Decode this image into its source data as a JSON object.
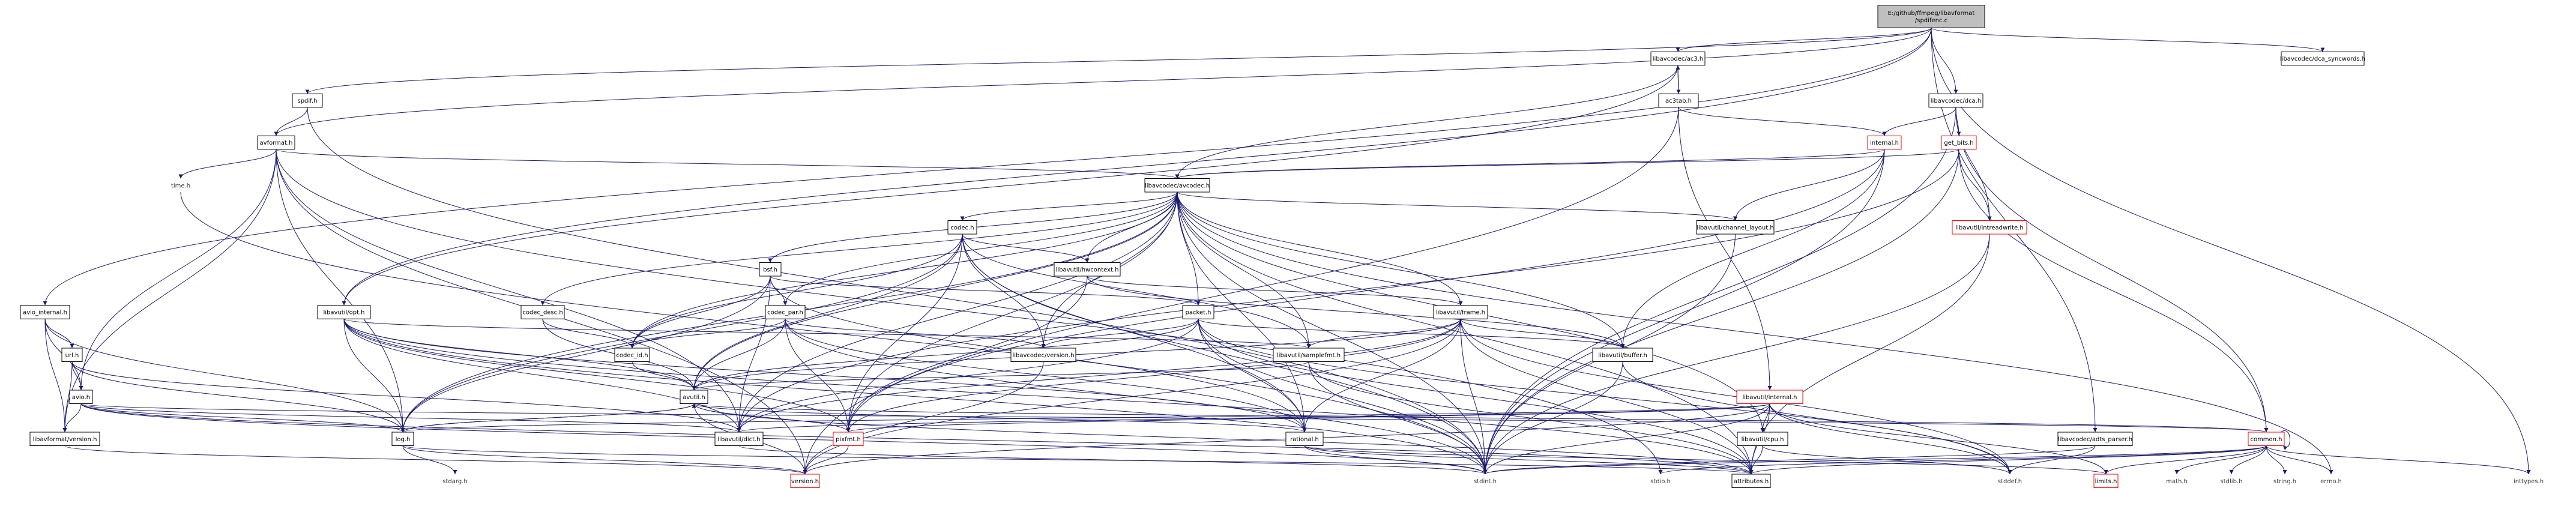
{
  "graph": {
    "title": "E:/github/ffmpeg/libavformat/spdifenc.c",
    "colors": {
      "edge": "#191970",
      "node_fill": "#ffffff",
      "root_fill": "#bfbfbf",
      "border_normal": "#000000",
      "border_truncated": "#ff0000",
      "text_plain": "#3f3f3f"
    },
    "nodes": [
      {
        "id": "root",
        "label": "E:/github/ffmpeg/libavformat\n/spdifenc.c",
        "style": "root"
      },
      {
        "id": "ac3h",
        "label": "libavcodec/ac3.h",
        "style": "normal"
      },
      {
        "id": "ac3tab",
        "label": "ac3tab.h",
        "style": "normal"
      },
      {
        "id": "dcah",
        "label": "libavcodec/dca.h",
        "style": "normal"
      },
      {
        "id": "dcasync",
        "label": "libavcodec/dca_syncwords.h",
        "style": "normal"
      },
      {
        "id": "spdifh",
        "label": "spdif.h",
        "style": "normal"
      },
      {
        "id": "avformat",
        "label": "avformat.h",
        "style": "normal"
      },
      {
        "id": "timeh",
        "label": "time.h",
        "style": "plain"
      },
      {
        "id": "internal",
        "label": "internal.h",
        "style": "truncated"
      },
      {
        "id": "getbits",
        "label": "get_bits.h",
        "style": "truncated"
      },
      {
        "id": "avcodec",
        "label": "libavcodec/avcodec.h",
        "style": "normal"
      },
      {
        "id": "codech",
        "label": "codec.h",
        "style": "normal"
      },
      {
        "id": "chlayout",
        "label": "libavutil/channel_layout.h",
        "style": "normal"
      },
      {
        "id": "intrw",
        "label": "libavutil/intreadwrite.h",
        "style": "truncated"
      },
      {
        "id": "avinternal",
        "label": "avio_internal.h",
        "style": "normal"
      },
      {
        "id": "optst",
        "label": "libavutil/opt.h",
        "style": "normal"
      },
      {
        "id": "codecdesc",
        "label": "codec_desc.h",
        "style": "normal"
      },
      {
        "id": "bsf",
        "label": "bsf.h",
        "style": "normal"
      },
      {
        "id": "hwctx",
        "label": "libavutil/hwcontext.h",
        "style": "normal"
      },
      {
        "id": "codecpar",
        "label": "codec_par.h",
        "style": "normal"
      },
      {
        "id": "packet",
        "label": "packet.h",
        "style": "normal"
      },
      {
        "id": "frame",
        "label": "libavutil/frame.h",
        "style": "normal"
      },
      {
        "id": "urlh",
        "label": "url.h",
        "style": "normal"
      },
      {
        "id": "codecid",
        "label": "codec_id.h",
        "style": "normal"
      },
      {
        "id": "lavcver",
        "label": "libavcodec/version.h",
        "style": "normal"
      },
      {
        "id": "samplefmt",
        "label": "libavutil/samplefmt.h",
        "style": "normal"
      },
      {
        "id": "buffer",
        "label": "libavutil/buffer.h",
        "style": "normal"
      },
      {
        "id": "avioh",
        "label": "avio.h",
        "style": "normal"
      },
      {
        "id": "avutilh",
        "label": "avutil.h",
        "style": "normal"
      },
      {
        "id": "lavuinternal",
        "label": "libavutil/internal.h",
        "style": "truncated"
      },
      {
        "id": "lavfver",
        "label": "libavformat/version.h",
        "style": "normal"
      },
      {
        "id": "logh",
        "label": "log.h",
        "style": "normal"
      },
      {
        "id": "dict",
        "label": "libavutil/dict.h",
        "style": "normal"
      },
      {
        "id": "pixfmt",
        "label": "pixfmt.h",
        "style": "truncated"
      },
      {
        "id": "rational",
        "label": "rational.h",
        "style": "normal"
      },
      {
        "id": "cpuh",
        "label": "libavutil/cpu.h",
        "style": "normal"
      },
      {
        "id": "adtsparser",
        "label": "libavcodec/adts_parser.h",
        "style": "normal"
      },
      {
        "id": "commonh",
        "label": "common.h",
        "style": "truncated"
      },
      {
        "id": "stdargh",
        "label": "stdarg.h",
        "style": "plain"
      },
      {
        "id": "versionh",
        "label": "version.h",
        "style": "truncated"
      },
      {
        "id": "stdinth",
        "label": "stdint.h",
        "style": "plain"
      },
      {
        "id": "stdioh",
        "label": "stdio.h",
        "style": "plain"
      },
      {
        "id": "attributes",
        "label": "attributes.h",
        "style": "normal"
      },
      {
        "id": "stddefh",
        "label": "stddef.h",
        "style": "plain"
      },
      {
        "id": "limitsh",
        "label": "limits.h",
        "style": "truncated"
      },
      {
        "id": "mathh",
        "label": "math.h",
        "style": "plain"
      },
      {
        "id": "stdlibh",
        "label": "stdlib.h",
        "style": "plain"
      },
      {
        "id": "stringh",
        "label": "string.h",
        "style": "plain"
      },
      {
        "id": "errnoh",
        "label": "errno.h",
        "style": "plain"
      },
      {
        "id": "inttypesh",
        "label": "inttypes.h",
        "style": "plain"
      }
    ],
    "edges": [
      [
        "root",
        "ac3h"
      ],
      [
        "root",
        "dcah"
      ],
      [
        "root",
        "dcasync"
      ],
      [
        "root",
        "spdifh"
      ],
      [
        "root",
        "avformat"
      ],
      [
        "root",
        "avinternal"
      ],
      [
        "root",
        "optst"
      ],
      [
        "root",
        "adtsparser"
      ],
      [
        "root",
        "inttypesh"
      ],
      [
        "ac3h",
        "ac3tab"
      ],
      [
        "ac3tab",
        "ac3h"
      ],
      [
        "ac3h",
        "avcodec"
      ],
      [
        "ac3h",
        "optst"
      ],
      [
        "ac3tab",
        "internal"
      ],
      [
        "ac3tab",
        "lavuinternal"
      ],
      [
        "ac3tab",
        "versionh"
      ],
      [
        "dcah",
        "internal"
      ],
      [
        "dcah",
        "getbits"
      ],
      [
        "dcah",
        "intrw"
      ],
      [
        "dcah",
        "commonh"
      ],
      [
        "dcah",
        "stdinth"
      ],
      [
        "spdifh",
        "avformat"
      ],
      [
        "spdifh",
        "stdinth"
      ],
      [
        "avformat",
        "timeh"
      ],
      [
        "avformat",
        "avcodec"
      ],
      [
        "avformat",
        "avioh"
      ],
      [
        "avformat",
        "lavfver"
      ],
      [
        "avformat",
        "logh"
      ],
      [
        "avformat",
        "dict"
      ],
      [
        "avformat",
        "stdioh"
      ],
      [
        "avformat",
        "versionh"
      ],
      [
        "timeh",
        "stdinth"
      ],
      [
        "internal",
        "avcodec"
      ],
      [
        "internal",
        "chlayout"
      ],
      [
        "internal",
        "buffer"
      ],
      [
        "internal",
        "pixfmt"
      ],
      [
        "internal",
        "stdinth"
      ],
      [
        "getbits",
        "avcodec"
      ],
      [
        "getbits",
        "intrw"
      ],
      [
        "getbits",
        "commonh"
      ],
      [
        "getbits",
        "dict"
      ],
      [
        "getbits",
        "stdinth"
      ],
      [
        "avcodec",
        "codech"
      ],
      [
        "avcodec",
        "chlayout"
      ],
      [
        "avcodec",
        "codecdesc"
      ],
      [
        "avcodec",
        "bsf"
      ],
      [
        "avcodec",
        "hwctx"
      ],
      [
        "avcodec",
        "codecpar"
      ],
      [
        "avcodec",
        "packet"
      ],
      [
        "avcodec",
        "frame"
      ],
      [
        "avcodec",
        "codecid"
      ],
      [
        "avcodec",
        "lavcver"
      ],
      [
        "avcodec",
        "samplefmt"
      ],
      [
        "avcodec",
        "buffer"
      ],
      [
        "avcodec",
        "avutilh"
      ],
      [
        "avcodec",
        "logh"
      ],
      [
        "avcodec",
        "dict"
      ],
      [
        "avcodec",
        "pixfmt"
      ],
      [
        "avcodec",
        "rational"
      ],
      [
        "avcodec",
        "cpuh"
      ],
      [
        "avcodec",
        "attributes"
      ],
      [
        "avcodec",
        "errnoh"
      ],
      [
        "avcodec",
        "stdinth"
      ],
      [
        "codech",
        "hwctx"
      ],
      [
        "codech",
        "codecid"
      ],
      [
        "codech",
        "lavcver"
      ],
      [
        "codech",
        "samplefmt"
      ],
      [
        "codech",
        "avutilh"
      ],
      [
        "codech",
        "logh"
      ],
      [
        "codech",
        "pixfmt"
      ],
      [
        "codech",
        "rational"
      ],
      [
        "codech",
        "stdinth"
      ],
      [
        "chlayout",
        "stdinth"
      ],
      [
        "intrw",
        "stdinth"
      ],
      [
        "intrw",
        "attributes"
      ],
      [
        "avinternal",
        "urlh"
      ],
      [
        "avinternal",
        "avioh"
      ],
      [
        "avinternal",
        "lavfver"
      ],
      [
        "avinternal",
        "logh"
      ],
      [
        "optst",
        "samplefmt"
      ],
      [
        "optst",
        "avutilh"
      ],
      [
        "optst",
        "logh"
      ],
      [
        "optst",
        "dict"
      ],
      [
        "optst",
        "pixfmt"
      ],
      [
        "optst",
        "rational"
      ],
      [
        "optst",
        "attributes"
      ],
      [
        "optst",
        "stdinth"
      ],
      [
        "codecdesc",
        "codecid"
      ],
      [
        "codecdesc",
        "avutilh"
      ],
      [
        "bsf",
        "codecpar"
      ],
      [
        "bsf",
        "packet"
      ],
      [
        "bsf",
        "codecid"
      ],
      [
        "bsf",
        "logh"
      ],
      [
        "bsf",
        "dict"
      ],
      [
        "bsf",
        "rational"
      ],
      [
        "hwctx",
        "frame"
      ],
      [
        "hwctx",
        "buffer"
      ],
      [
        "hwctx",
        "pixfmt"
      ],
      [
        "codecpar",
        "codecid"
      ],
      [
        "codecpar",
        "lavcver"
      ],
      [
        "codecpar",
        "avutilh"
      ],
      [
        "codecpar",
        "pixfmt"
      ],
      [
        "codecpar",
        "rational"
      ],
      [
        "codecpar",
        "stdinth"
      ],
      [
        "packet",
        "lavcver"
      ],
      [
        "packet",
        "buffer"
      ],
      [
        "packet",
        "avutilh"
      ],
      [
        "packet",
        "dict"
      ],
      [
        "packet",
        "rational"
      ],
      [
        "packet",
        "attributes"
      ],
      [
        "packet",
        "stddefh"
      ],
      [
        "packet",
        "stdinth"
      ],
      [
        "frame",
        "samplefmt"
      ],
      [
        "frame",
        "buffer"
      ],
      [
        "frame",
        "avutilh"
      ],
      [
        "frame",
        "dict"
      ],
      [
        "frame",
        "pixfmt"
      ],
      [
        "frame",
        "rational"
      ],
      [
        "frame",
        "attributes"
      ],
      [
        "frame",
        "versionh"
      ],
      [
        "frame",
        "stddefh"
      ],
      [
        "frame",
        "stdinth"
      ],
      [
        "urlh",
        "avioh"
      ],
      [
        "urlh",
        "logh"
      ],
      [
        "urlh",
        "dict"
      ],
      [
        "urlh",
        "lavfver"
      ],
      [
        "codecid",
        "avutilh"
      ],
      [
        "lavcver",
        "versionh"
      ],
      [
        "samplefmt",
        "avutilh"
      ],
      [
        "samplefmt",
        "attributes"
      ],
      [
        "samplefmt",
        "stdinth"
      ],
      [
        "buffer",
        "stdinth"
      ],
      [
        "buffer",
        "stddefh"
      ],
      [
        "avioh",
        "logh"
      ],
      [
        "avioh",
        "dict"
      ],
      [
        "avioh",
        "lavfver"
      ],
      [
        "avioh",
        "commonh"
      ],
      [
        "avioh",
        "stdinth"
      ],
      [
        "avioh",
        "attributes"
      ],
      [
        "avutilh",
        "commonh"
      ],
      [
        "avutilh",
        "rational"
      ],
      [
        "avutilh",
        "versionh"
      ],
      [
        "avutilh",
        "logh"
      ],
      [
        "avutilh",
        "pixfmt"
      ],
      [
        "avutilh",
        "attributes"
      ],
      [
        "lavuinternal",
        "cpuh"
      ],
      [
        "lavuinternal",
        "dict"
      ],
      [
        "lavuinternal",
        "pixfmt"
      ],
      [
        "lavuinternal",
        "attributes"
      ],
      [
        "lavuinternal",
        "stdinth"
      ],
      [
        "lavuinternal",
        "stddefh"
      ],
      [
        "lavuinternal",
        "limitsh"
      ],
      [
        "lavuinternal",
        "versionh"
      ],
      [
        "lavuinternal",
        "logh"
      ],
      [
        "lavfver",
        "versionh"
      ],
      [
        "logh",
        "stdargh"
      ],
      [
        "logh",
        "avutilh"
      ],
      [
        "logh",
        "versionh"
      ],
      [
        "logh",
        "attributes"
      ],
      [
        "dict",
        "stdinth"
      ],
      [
        "pixfmt",
        "versionh"
      ],
      [
        "rational",
        "stdinth"
      ],
      [
        "rational",
        "limitsh"
      ],
      [
        "rational",
        "attributes"
      ],
      [
        "cpuh",
        "attributes"
      ],
      [
        "cpuh",
        "stddefh"
      ],
      [
        "adtsparser",
        "stddefh"
      ],
      [
        "adtsparser",
        "stdinth"
      ],
      [
        "commonh",
        "errnoh"
      ],
      [
        "commonh",
        "inttypesh"
      ],
      [
        "commonh",
        "limitsh"
      ],
      [
        "commonh",
        "mathh"
      ],
      [
        "commonh",
        "stdinth"
      ],
      [
        "commonh",
        "stdioh"
      ],
      [
        "commonh",
        "stdlibh"
      ],
      [
        "commonh",
        "stringh"
      ],
      [
        "commonh",
        "attributes"
      ],
      [
        "commonh",
        "commonh"
      ]
    ]
  }
}
